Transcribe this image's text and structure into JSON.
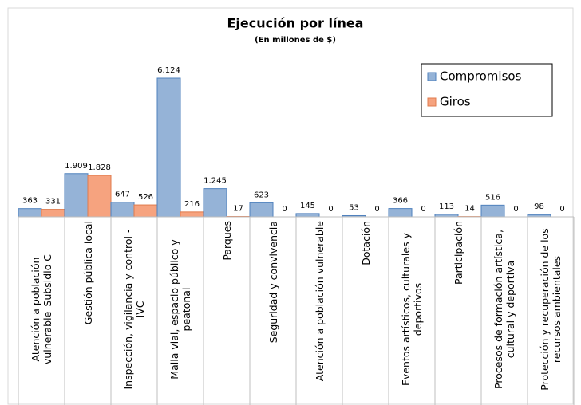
{
  "chart_data": {
    "type": "bar",
    "title": "Ejecución por línea",
    "subtitle": "(En millones de $)",
    "categories": [
      "Atención a población vulnerable_Subsidio C",
      "Gestión pública local",
      "Inspección, vigilancia y control - IVC",
      "Malla vial, espacio público y peatonal",
      "Parques",
      "Seguridad y convivencia",
      "Atención a población vulnerable",
      "Dotación",
      "Eventos artísticos, culturales y deportivos",
      "Participación",
      "Procesos de formación artística, cultural y deportiva",
      "Protección y recuperación de los recursos ambientales"
    ],
    "series": [
      {
        "name": "Compromisos",
        "color": "#95b3d7",
        "values": [
          363,
          1909,
          647,
          6124,
          1245,
          623,
          145,
          53,
          366,
          113,
          516,
          98
        ],
        "value_labels": [
          "363",
          "1.909",
          "647",
          "6.124",
          "1.245",
          "623",
          "145",
          "53",
          "366",
          "113",
          "516",
          "98"
        ]
      },
      {
        "name": "Giros",
        "color": "#f6a37f",
        "values": [
          331,
          1828,
          526,
          216,
          17,
          0,
          0,
          0,
          0,
          14,
          0,
          0
        ],
        "value_labels": [
          "331",
          "1.828",
          "526",
          "216",
          "17",
          "0",
          "0",
          "0",
          "0",
          "14",
          "0",
          "0"
        ]
      }
    ],
    "legend": "top-right"
  }
}
